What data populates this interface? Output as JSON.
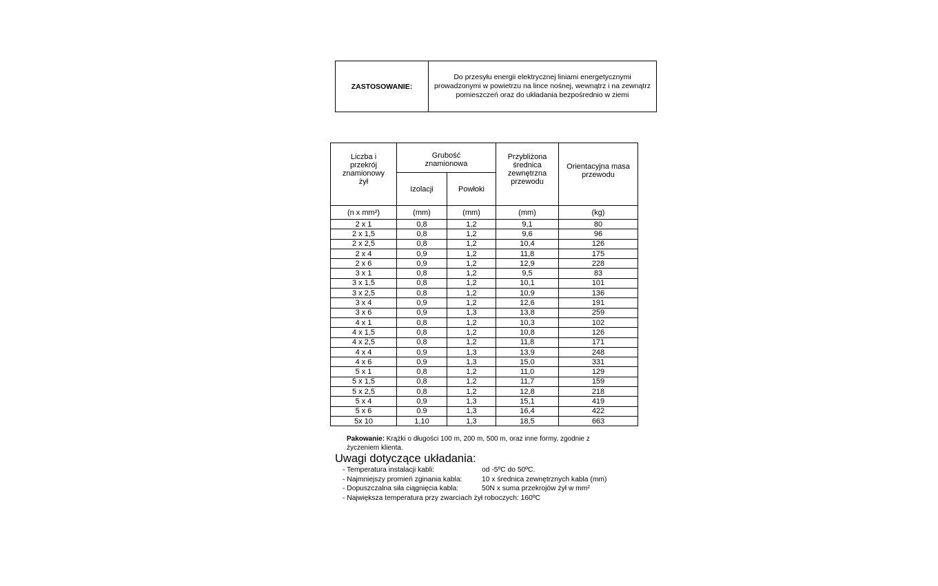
{
  "application": {
    "label": "ZASTOSOWANIE:",
    "text": "Do przesyłu energii elektrycznej liniami energetycznymi prowadzonymi w powietrzu na lince nośnej, wewnątrz i na zewnątrz pomieszczeń oraz do układania bezpośrednio w ziemi"
  },
  "table": {
    "headers": {
      "size": "Liczba i przekrój znamionowy żył",
      "thickness": "Grubość znamionowa",
      "insulation": "Izolacji",
      "sheath": "Powłoki",
      "diameter": "Przybliżona średnica zewnętrzna przewodu",
      "mass": "Orientacyjna masa przewodu"
    },
    "units": [
      "(n x mm²)",
      "(mm)",
      "(mm)",
      "(mm)",
      "(kg)"
    ],
    "rows": [
      [
        "2 x 1",
        "0,8",
        "1,2",
        "9,1",
        "80"
      ],
      [
        "2 x 1,5",
        "0,8",
        "1,2",
        "9,6",
        "96"
      ],
      [
        "2 x 2,5",
        "0,8",
        "1,2",
        "10,4",
        "126"
      ],
      [
        "2 x 4",
        "0,9",
        "1,2",
        "11,8",
        "175"
      ],
      [
        "2 x 6",
        "0,9",
        "1,2",
        "12,9",
        "228"
      ],
      [
        "3 x 1",
        "0,8",
        "1,2",
        "9,5",
        "83"
      ],
      [
        "3 x 1,5",
        "0,8",
        "1,2",
        "10,1",
        "101"
      ],
      [
        "3 x 2,5",
        "0,8",
        "1,2",
        "10,9",
        "136"
      ],
      [
        "3 x 4",
        "0,9",
        "1,2",
        "12,6",
        "191"
      ],
      [
        "3 x 6",
        "0,9",
        "1,3",
        "13,8",
        "259"
      ],
      [
        "4 x 1",
        "0,8",
        "1,2",
        "10,3",
        "102"
      ],
      [
        "4 x 1,5",
        "0,8",
        "1,2",
        "10,8",
        "126"
      ],
      [
        "4 x 2,5",
        "0,8",
        "1,2",
        "11,8",
        "171"
      ],
      [
        "4 x 4",
        "0,9",
        "1,3",
        "13,9",
        "248"
      ],
      [
        "4 x 6",
        "0,9",
        "1,3",
        "15,0",
        "331"
      ],
      [
        "5 x 1",
        "0,8",
        "1,2",
        "11,0",
        "129"
      ],
      [
        "5 x 1,5",
        "0,8",
        "1,2",
        "11,7",
        "159"
      ],
      [
        "5 x 2,5",
        "0,8",
        "1,2",
        "12,8",
        "218"
      ],
      [
        "5 x 4",
        "0,9",
        "1,3",
        "15,1",
        "419"
      ],
      [
        "5 x 6",
        "0.9",
        "1,3",
        "16,4",
        "422"
      ],
      [
        "5x 10",
        "1,10",
        "1,3",
        "18,5",
        "663"
      ]
    ]
  },
  "packaging": {
    "label": "Pakowanie:",
    "text": " Krążki o długości 100 m, 200 m, 500 m, oraz inne formy, zgodnie z życzeniem klienta."
  },
  "remarks": {
    "title": "Uwagi dotyczące układania:",
    "items": [
      {
        "key": "- Temperatura instalacji kabli:",
        "value": "od -5ºC do 50ºC."
      },
      {
        "key": "- Najmniejszy promień zginania kabla:",
        "value": "10 x średnica zewnętrznych kabla (mm)"
      },
      {
        "key": "- Dopuszczalna siła ciągnięcia kabla:",
        "value": "50N x suma przekrojów żył w mm²"
      },
      {
        "key": "- Największa temperatura przy zwarciach żył roboczych: 160ºC",
        "value": ""
      }
    ]
  }
}
